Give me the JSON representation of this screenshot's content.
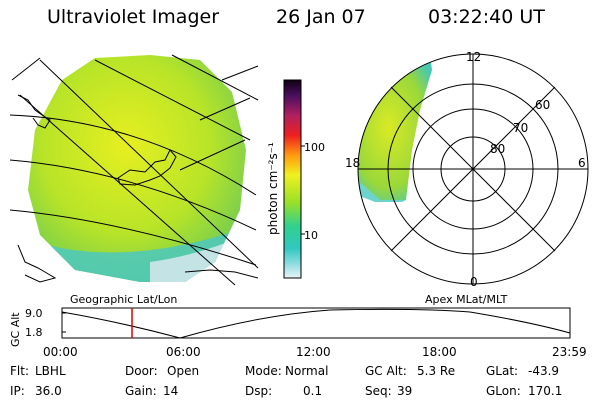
{
  "header": {
    "instrument": "Ultraviolet Imager",
    "date": "26 Jan 07",
    "time": "03:22:40 UT"
  },
  "colorbar": {
    "unit_label": "photon cm⁻²s⁻¹",
    "ticks": [
      "100",
      "10"
    ],
    "scale": "log"
  },
  "left_panel": {
    "caption": "Geographic Lat/Lon"
  },
  "right_panel": {
    "caption": "Apex MLat/MLT",
    "mlt_labels": [
      "12",
      "18",
      "6",
      "0"
    ],
    "lat_labels": [
      "60",
      "70",
      "80"
    ]
  },
  "timeline": {
    "axis_title": "GC Alt",
    "y_ticks": [
      "9.0",
      "1.8"
    ],
    "x_ticks": [
      "00:00",
      "06:00",
      "12:00",
      "18:00",
      "23:59"
    ],
    "marker_color": "#dd0000"
  },
  "footer": {
    "flt_label": "Flt:",
    "flt_value": "LBHL",
    "ip_label": "IP:",
    "ip_value": "36.0",
    "door_label": "Door:",
    "door_value": "Open",
    "gain_label": "Gain:",
    "gain_value": "14",
    "mode_label": "Mode:",
    "mode_value": "Normal",
    "dsp_label": "Dsp:",
    "dsp_value": "0.1",
    "gcalt_label": "GC Alt:",
    "gcalt_value": "5.3 Re",
    "seq_label": "Seq:",
    "seq_value": "39",
    "glat_label": "GLat:",
    "glat_value": "-43.9",
    "glon_label": "GLon:",
    "glon_value": "170.1"
  }
}
